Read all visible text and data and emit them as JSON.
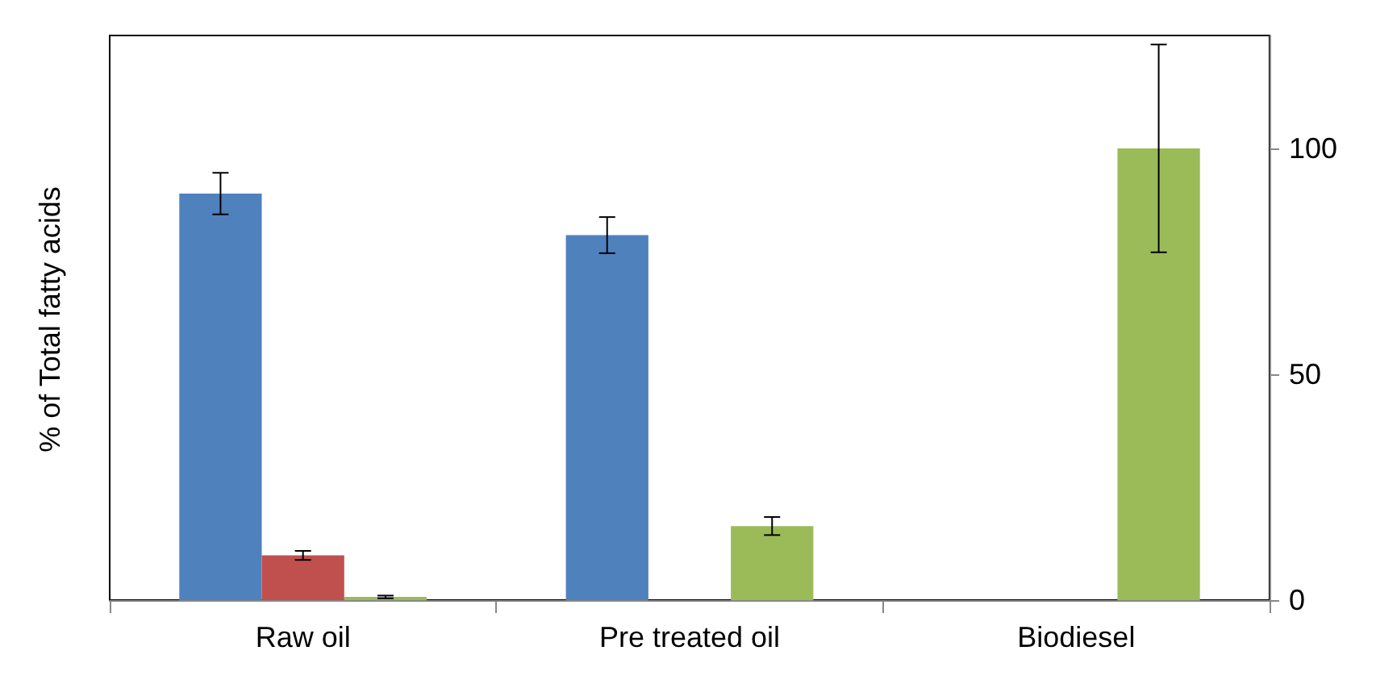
{
  "chart_data": {
    "type": "bar",
    "ylabel": "% of Total fatty acids",
    "categories": [
      "Raw oil",
      "Pre treated oil",
      "Biodiesel"
    ],
    "series": [
      {
        "color": "#4f81bd",
        "values": [
          90,
          80.8,
          null
        ],
        "errors": [
          4.6,
          4,
          null
        ]
      },
      {
        "color": "#c0504d",
        "values": [
          9.9,
          null,
          null
        ],
        "errors": [
          1,
          null,
          null
        ]
      },
      {
        "color": "#9bbb59",
        "values": [
          0.7,
          16.4,
          100
        ],
        "errors": [
          0.3,
          2,
          23
        ]
      }
    ],
    "ylim": [
      0,
      125
    ],
    "yticks": [
      0,
      50,
      100
    ],
    "grid": false
  }
}
